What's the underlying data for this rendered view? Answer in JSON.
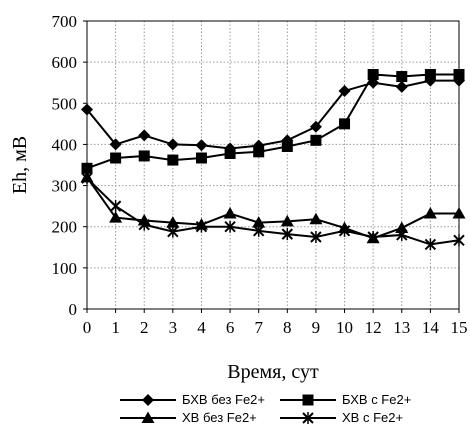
{
  "chart_data": {
    "type": "line",
    "xlabel": "Время, сут",
    "ylabel": "Eh, мВ",
    "ylim": [
      0,
      700
    ],
    "yticks": [
      0,
      100,
      200,
      300,
      400,
      500,
      600,
      700
    ],
    "categories": [
      "0",
      "1",
      "2",
      "3",
      "4",
      "6",
      "7",
      "8",
      "9",
      "10",
      "12",
      "13",
      "14",
      "15"
    ],
    "grid": true,
    "legend_position": "bottom",
    "series": [
      {
        "name": "БХВ без Fe2+",
        "marker": "diamond",
        "values": [
          485,
          400,
          422,
          400,
          398,
          390,
          397,
          410,
          443,
          530,
          550,
          540,
          555,
          555
        ]
      },
      {
        "name": "БХВ с Fe2+",
        "marker": "square",
        "values": [
          342,
          367,
          372,
          362,
          367,
          378,
          382,
          395,
          410,
          450,
          570,
          565,
          570,
          570
        ]
      },
      {
        "name": "ХВ без Fe2+",
        "marker": "triangle",
        "values": [
          320,
          222,
          215,
          210,
          205,
          232,
          210,
          213,
          218,
          197,
          172,
          197,
          232,
          232
        ]
      },
      {
        "name": "ХВ с Fe2+",
        "marker": "star",
        "values": [
          318,
          250,
          205,
          188,
          200,
          200,
          190,
          182,
          175,
          190,
          175,
          180,
          157,
          167
        ]
      }
    ]
  }
}
